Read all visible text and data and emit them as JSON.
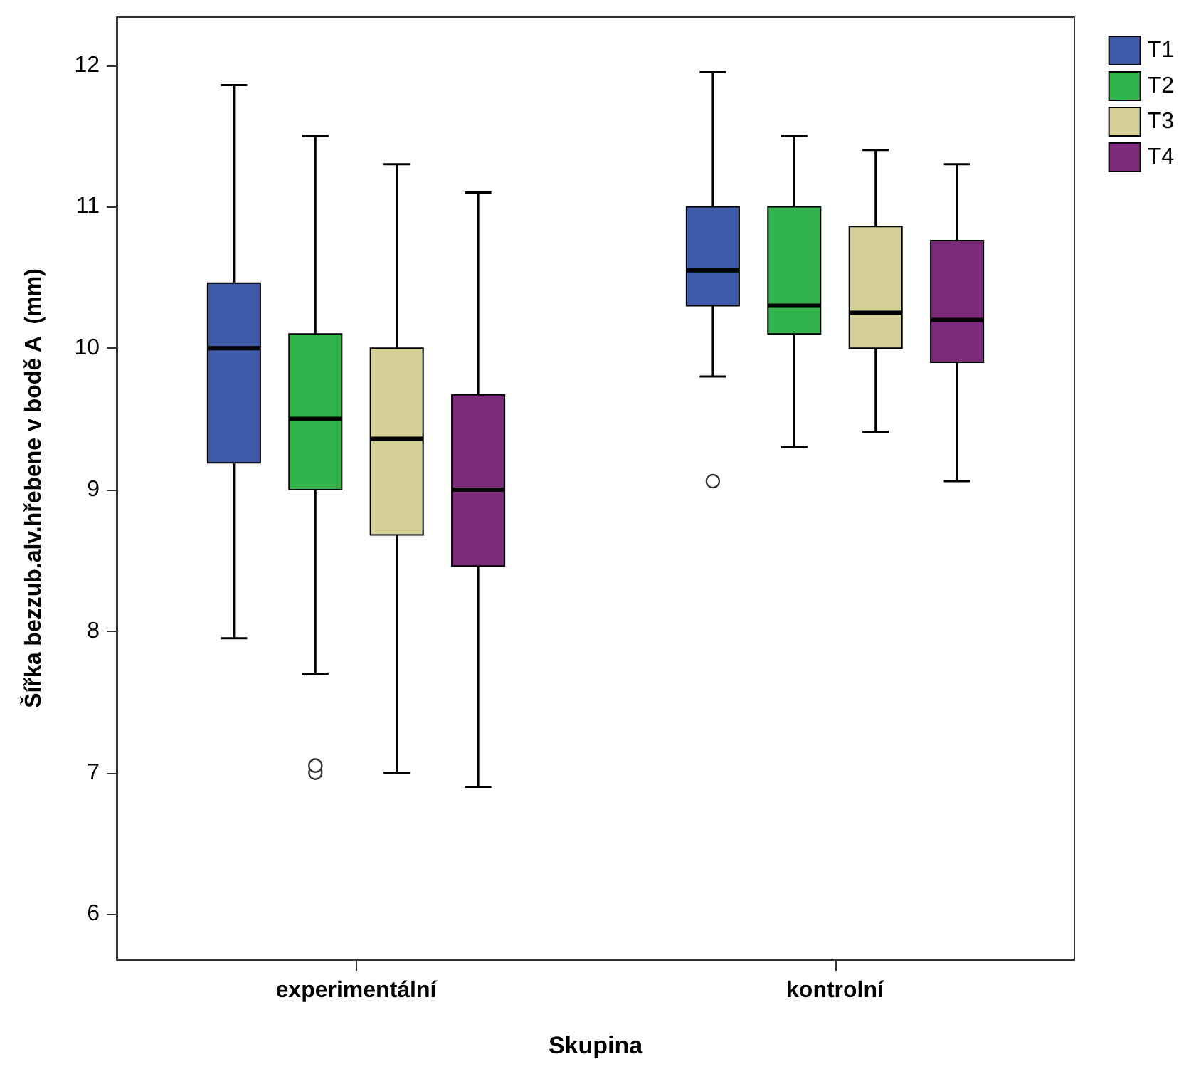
{
  "chart_data": {
    "type": "box",
    "xlabel": "Skupina",
    "ylabel": "Šířka bezzub.alv.hřebene v bodě A  (mm)",
    "categories": [
      "experimentální",
      "kontrolní"
    ],
    "ylim": [
      5.68,
      12.34
    ],
    "yticks": [
      6,
      7,
      8,
      9,
      10,
      11,
      12
    ],
    "grid": false,
    "legend": "top right",
    "series": [
      {
        "name": "T1",
        "color": "#3f5aa9",
        "boxes": [
          {
            "low": 7.95,
            "q1": 9.19,
            "median": 10.0,
            "q3": 10.46,
            "high": 11.86
          },
          {
            "low": 9.8,
            "q1": 10.3,
            "median": 10.55,
            "q3": 11.0,
            "high": 11.95,
            "outliers": [
              9.06
            ]
          }
        ]
      },
      {
        "name": "T2",
        "color": "#30b34a",
        "boxes": [
          {
            "low": 7.7,
            "q1": 9.0,
            "median": 9.5,
            "q3": 10.1,
            "high": 11.5,
            "outliers": [
              7.0,
              7.05
            ]
          },
          {
            "low": 9.3,
            "q1": 10.1,
            "median": 10.3,
            "q3": 11.0,
            "high": 11.5
          }
        ]
      },
      {
        "name": "T3",
        "color": "#d3cf97",
        "boxes": [
          {
            "low": 7.0,
            "q1": 8.68,
            "median": 9.36,
            "q3": 10.0,
            "high": 11.3
          },
          {
            "low": 9.41,
            "q1": 10.0,
            "median": 10.25,
            "q3": 10.86,
            "high": 11.4
          }
        ]
      },
      {
        "name": "T4",
        "color": "#7b2a7b",
        "boxes": [
          {
            "low": 6.9,
            "q1": 8.46,
            "median": 9.0,
            "q3": 9.67,
            "high": 11.1
          },
          {
            "low": 9.06,
            "q1": 9.9,
            "median": 10.2,
            "q3": 10.76,
            "high": 11.3
          }
        ]
      }
    ]
  }
}
